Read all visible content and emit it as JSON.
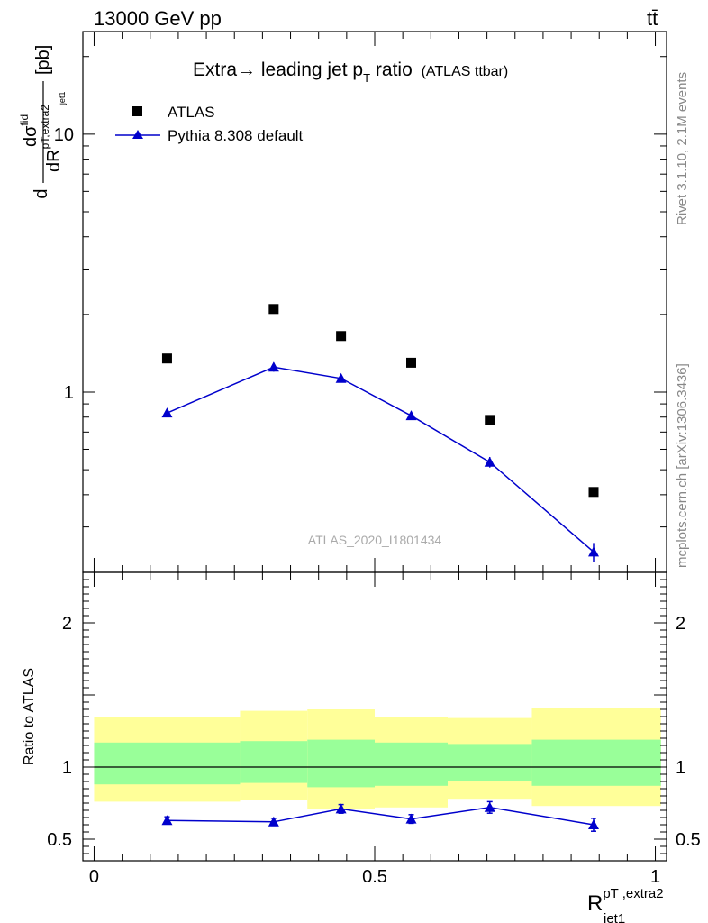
{
  "header": {
    "left": "13000 GeV pp",
    "right": "tt̄"
  },
  "side_labels": {
    "rivet": "Rivet 3.1.10,  2.1M events",
    "mcplots": "mcplots.cern.ch [arXiv:1306.3436]"
  },
  "chart_data": [
    {
      "type": "scatter",
      "panel": "main",
      "title": "Extra→ leading jet p_T ratio (ATLAS ttbar)",
      "title_main": "Extra→ leading jet p",
      "title_sub": "T",
      "title_tail": " ratio",
      "title_note": "(ATLAS ttbar)",
      "ylabel": "dσ^fid / dR^{pT,extra2}_{jet1} [pb]",
      "yscale": "log",
      "ylim": [
        0.2,
        25
      ],
      "xlim": [
        -0.02,
        1.02
      ],
      "yticks": [
        {
          "v": 1,
          "label": "1"
        },
        {
          "v": 10,
          "label": "10"
        }
      ],
      "watermark": "ATLAS_2020_I1801434",
      "legend": {
        "position": "top-left",
        "entries": [
          {
            "label": "ATLAS",
            "marker": "square",
            "color": "#000000"
          },
          {
            "label": "Pythia 8.308 default",
            "marker": "triangle",
            "color": "#0000cc"
          }
        ]
      },
      "series": [
        {
          "name": "ATLAS",
          "color": "#000000",
          "x": [
            0.13,
            0.32,
            0.44,
            0.565,
            0.705,
            0.89
          ],
          "y": [
            1.35,
            2.1,
            1.65,
            1.3,
            0.78,
            0.41
          ]
        },
        {
          "name": "Pythia 8.308 default",
          "color": "#0000cc",
          "x": [
            0.13,
            0.32,
            0.44,
            0.565,
            0.705,
            0.89
          ],
          "y": [
            0.83,
            1.25,
            1.13,
            0.81,
            0.535,
            0.24
          ],
          "yerr": [
            0.02,
            0.05,
            0.04,
            0.03,
            0.025,
            0.02
          ]
        }
      ]
    },
    {
      "type": "line",
      "panel": "ratio",
      "ylabel": "Ratio to ATLAS",
      "xlabel": "R^{pT,extra2}_{jet1}",
      "xlabel_main": "R",
      "xlabel_sup": "pT ,extra2",
      "xlabel_sub": "jet1",
      "xlim": [
        -0.02,
        1.02
      ],
      "ylim": [
        0.35,
        2.35
      ],
      "xticks": [
        {
          "v": 0,
          "label": "0"
        },
        {
          "v": 0.5,
          "label": "0.5"
        },
        {
          "v": 1,
          "label": "1"
        }
      ],
      "yticks": [
        {
          "v": 0.5,
          "label": "0.5"
        },
        {
          "v": 1,
          "label": "1"
        },
        {
          "v": 2,
          "label": "2"
        }
      ],
      "reference_line": 1,
      "bands": [
        {
          "x0": 0.0,
          "x1": 0.26,
          "yellow": [
            0.76,
            1.35
          ],
          "green": [
            0.88,
            1.17
          ]
        },
        {
          "x0": 0.26,
          "x1": 0.38,
          "yellow": [
            0.77,
            1.39
          ],
          "green": [
            0.89,
            1.18
          ]
        },
        {
          "x0": 0.38,
          "x1": 0.5,
          "yellow": [
            0.71,
            1.4
          ],
          "green": [
            0.86,
            1.19
          ]
        },
        {
          "x0": 0.5,
          "x1": 0.63,
          "yellow": [
            0.72,
            1.35
          ],
          "green": [
            0.87,
            1.17
          ]
        },
        {
          "x0": 0.63,
          "x1": 0.78,
          "yellow": [
            0.78,
            1.34
          ],
          "green": [
            0.9,
            1.16
          ]
        },
        {
          "x0": 0.78,
          "x1": 1.01,
          "yellow": [
            0.73,
            1.41
          ],
          "green": [
            0.87,
            1.19
          ]
        }
      ],
      "series": [
        {
          "name": "Pythia 8.308 default / ATLAS",
          "color": "#0000cc",
          "x": [
            0.13,
            0.32,
            0.44,
            0.565,
            0.705,
            0.89
          ],
          "y": [
            0.63,
            0.62,
            0.71,
            0.64,
            0.72,
            0.6
          ],
          "yerr": [
            0.025,
            0.025,
            0.03,
            0.03,
            0.04,
            0.045
          ]
        }
      ]
    }
  ]
}
